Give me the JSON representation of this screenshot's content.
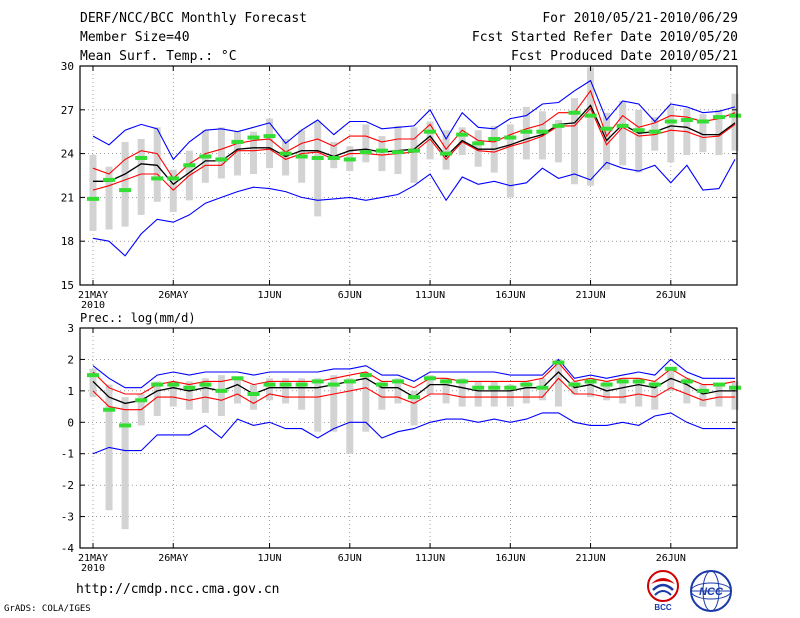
{
  "header": {
    "title": "DERF/NCC/BCC Monthly Forecast",
    "member_size": "Member Size=40",
    "variable": "Mean Surf. Temp.: °C",
    "for_range": "For 2010/05/21-2010/06/29",
    "fcst_started": "Fcst Started Refer Date 2010/05/20",
    "fcst_produced": "Fcst Produced Date 2010/05/21"
  },
  "footer": {
    "url": "http://cmdp.ncc.cma.gov.cn",
    "grads": "GrADS: COLA/IGES",
    "logo_bcc": "BCC",
    "logo_ncc": "NCC"
  },
  "colors": {
    "max_line": "#0000ff",
    "min_line": "#0000ff",
    "upper_line": "#ff0000",
    "lower_line": "#ff0000",
    "mean_line": "#000000",
    "ensemble_bar": "#d3d3d3",
    "marker": "#33dd33"
  },
  "chart_data": [
    {
      "type": "line",
      "title": "Mean Surf. Temp.: °C",
      "ylim": [
        15,
        30
      ],
      "yticks": [
        15,
        18,
        21,
        24,
        27,
        30
      ],
      "grid": true,
      "x_tick_labels": [
        {
          "day": 0,
          "label": "21MAY",
          "sub": "2010"
        },
        {
          "day": 5,
          "label": "26MAY",
          "sub": ""
        },
        {
          "day": 11,
          "label": "1JUN",
          "sub": ""
        },
        {
          "day": 16,
          "label": "6JUN",
          "sub": ""
        },
        {
          "day": 21,
          "label": "11JUN",
          "sub": ""
        },
        {
          "day": 26,
          "label": "16JUN",
          "sub": ""
        },
        {
          "day": 31,
          "label": "21JUN",
          "sub": ""
        },
        {
          "day": 36,
          "label": "26JUN",
          "sub": ""
        }
      ],
      "series": [
        {
          "name": "max",
          "values": [
            25.2,
            24.6,
            25.6,
            26.0,
            25.7,
            23.6,
            24.8,
            25.6,
            25.7,
            25.5,
            25.8,
            26.1,
            24.7,
            25.6,
            26.3,
            25.3,
            26.2,
            26.2,
            25.7,
            25.8,
            25.9,
            27.0,
            25.0,
            26.8,
            25.8,
            25.7,
            26.4,
            26.6,
            27.4,
            27.5,
            28.3,
            29.0,
            26.3,
            27.6,
            27.4,
            26.2,
            27.4,
            27.2,
            26.8,
            26.9,
            27.2
          ]
        },
        {
          "name": "upper",
          "values": [
            23.0,
            22.6,
            23.6,
            24.2,
            24.0,
            22.3,
            23.3,
            24.0,
            24.3,
            24.7,
            24.9,
            25.0,
            24.1,
            24.7,
            25.0,
            24.5,
            25.2,
            25.2,
            24.8,
            25.0,
            25.0,
            26.0,
            24.3,
            25.6,
            24.9,
            24.8,
            25.3,
            25.7,
            26.0,
            26.8,
            26.8,
            28.3,
            25.2,
            26.6,
            25.8,
            26.1,
            26.6,
            26.5,
            26.2,
            26.4,
            26.8
          ]
        },
        {
          "name": "mean",
          "values": [
            22.1,
            22.1,
            22.6,
            23.3,
            23.2,
            21.9,
            22.7,
            23.5,
            23.5,
            24.3,
            24.4,
            24.4,
            23.8,
            24.2,
            24.2,
            23.8,
            24.2,
            24.3,
            24.1,
            24.2,
            24.3,
            25.2,
            23.8,
            24.9,
            24.3,
            24.3,
            24.6,
            25.0,
            25.3,
            26.0,
            26.1,
            27.3,
            24.9,
            26.0,
            25.4,
            25.5,
            25.9,
            25.8,
            25.3,
            25.3,
            26.1
          ]
        },
        {
          "name": "lower",
          "values": [
            21.5,
            21.8,
            22.2,
            22.6,
            22.6,
            21.5,
            22.5,
            23.2,
            23.2,
            24.2,
            24.2,
            24.3,
            23.6,
            24.0,
            24.1,
            23.6,
            24.0,
            24.0,
            23.9,
            24.0,
            24.1,
            25.0,
            23.6,
            24.8,
            24.2,
            24.1,
            24.5,
            24.8,
            25.2,
            25.9,
            25.9,
            27.1,
            24.6,
            25.8,
            25.2,
            25.3,
            25.6,
            25.5,
            25.1,
            25.2,
            26.0
          ]
        },
        {
          "name": "min",
          "values": [
            18.2,
            18.0,
            17.0,
            18.5,
            19.5,
            19.3,
            19.8,
            20.6,
            21.0,
            21.4,
            21.7,
            21.6,
            21.4,
            21.0,
            20.8,
            20.9,
            21.0,
            20.8,
            21.0,
            21.2,
            21.8,
            22.6,
            20.8,
            22.4,
            21.9,
            22.1,
            21.8,
            22.0,
            23.0,
            22.3,
            22.6,
            22.2,
            23.4,
            23.0,
            22.8,
            23.2,
            22.0,
            23.2,
            21.5,
            21.6,
            23.6
          ]
        },
        {
          "name": "bar_low",
          "values": [
            18.7,
            18.8,
            19.0,
            19.8,
            20.7,
            20.0,
            20.8,
            22.0,
            22.3,
            22.5,
            22.6,
            23.0,
            22.5,
            22.0,
            19.7,
            23.0,
            22.8,
            23.4,
            22.8,
            22.6,
            22.0,
            23.6,
            22.9,
            23.9,
            23.1,
            22.7,
            21.0,
            23.6,
            23.6,
            23.4,
            21.9,
            21.8,
            22.9,
            23.2,
            22.7,
            24.2,
            23.4,
            23.9,
            24.1,
            23.9,
            24.2
          ]
        },
        {
          "name": "bar_high",
          "values": [
            23.9,
            23.1,
            24.8,
            25.0,
            25.8,
            22.9,
            24.2,
            25.6,
            25.8,
            25.5,
            25.5,
            26.4,
            25.0,
            25.6,
            26.2,
            24.8,
            24.5,
            26.0,
            25.2,
            25.9,
            25.8,
            26.2,
            25.6,
            25.8,
            25.6,
            25.9,
            26.0,
            27.2,
            26.9,
            26.3,
            27.8,
            29.9,
            26.8,
            27.6,
            27.0,
            26.5,
            27.3,
            27.1,
            26.7,
            27.0,
            28.1
          ]
        },
        {
          "name": "marker",
          "values": [
            20.9,
            22.2,
            21.5,
            23.7,
            22.3,
            22.3,
            23.2,
            23.8,
            23.6,
            24.8,
            25.1,
            25.2,
            24.0,
            23.8,
            23.7,
            23.7,
            23.6,
            24.1,
            24.2,
            24.1,
            24.2,
            25.5,
            24.0,
            25.3,
            24.7,
            25.0,
            25.1,
            25.5,
            25.5,
            25.9,
            26.8,
            26.6,
            25.7,
            25.9,
            25.6,
            25.5,
            26.2,
            26.3,
            26.2,
            26.5,
            26.6
          ]
        }
      ]
    },
    {
      "type": "line",
      "title": "Prec.: log(mm/d)",
      "ylim": [
        -4,
        3
      ],
      "yticks": [
        -4,
        -3,
        -2,
        -1,
        0,
        1,
        2,
        3
      ],
      "grid": true,
      "x_tick_labels": [
        {
          "day": 0,
          "label": "21MAY",
          "sub": "2010"
        },
        {
          "day": 5,
          "label": "26MAY",
          "sub": ""
        },
        {
          "day": 11,
          "label": "1JUN",
          "sub": ""
        },
        {
          "day": 16,
          "label": "6JUN",
          "sub": ""
        },
        {
          "day": 21,
          "label": "11JUN",
          "sub": ""
        },
        {
          "day": 26,
          "label": "16JUN",
          "sub": ""
        },
        {
          "day": 31,
          "label": "21JUN",
          "sub": ""
        },
        {
          "day": 36,
          "label": "26JUN",
          "sub": ""
        }
      ],
      "series": [
        {
          "name": "max",
          "values": [
            1.8,
            1.4,
            1.1,
            1.1,
            1.5,
            1.6,
            1.5,
            1.6,
            1.6,
            1.6,
            1.5,
            1.6,
            1.6,
            1.6,
            1.6,
            1.7,
            1.7,
            1.8,
            1.5,
            1.5,
            1.3,
            1.6,
            1.6,
            1.6,
            1.6,
            1.6,
            1.5,
            1.5,
            1.5,
            2.0,
            1.4,
            1.5,
            1.4,
            1.5,
            1.6,
            1.5,
            2.0,
            1.6,
            1.4,
            1.4,
            1.4
          ]
        },
        {
          "name": "upper",
          "values": [
            1.6,
            1.1,
            0.9,
            0.9,
            1.2,
            1.3,
            1.2,
            1.3,
            1.3,
            1.4,
            1.2,
            1.3,
            1.3,
            1.3,
            1.3,
            1.4,
            1.5,
            1.6,
            1.3,
            1.3,
            1.1,
            1.4,
            1.4,
            1.3,
            1.3,
            1.3,
            1.3,
            1.3,
            1.4,
            1.9,
            1.3,
            1.4,
            1.3,
            1.4,
            1.4,
            1.3,
            1.7,
            1.4,
            1.2,
            1.2,
            1.3
          ]
        },
        {
          "name": "mean",
          "values": [
            1.3,
            0.8,
            0.6,
            0.7,
            1.0,
            1.1,
            1.0,
            1.1,
            1.0,
            1.2,
            0.9,
            1.1,
            1.1,
            1.1,
            1.1,
            1.2,
            1.3,
            1.4,
            1.1,
            1.1,
            0.8,
            1.2,
            1.2,
            1.1,
            1.0,
            1.0,
            1.0,
            1.1,
            1.1,
            1.6,
            1.1,
            1.2,
            1.0,
            1.1,
            1.2,
            1.1,
            1.4,
            1.2,
            0.9,
            1.0,
            1.0
          ]
        },
        {
          "name": "lower",
          "values": [
            1.0,
            0.5,
            0.4,
            0.4,
            0.8,
            0.8,
            0.7,
            0.8,
            0.7,
            0.9,
            0.6,
            0.9,
            0.8,
            0.8,
            0.8,
            0.9,
            1.0,
            1.1,
            0.8,
            0.8,
            0.6,
            0.9,
            0.9,
            0.8,
            0.8,
            0.8,
            0.8,
            0.8,
            0.8,
            1.4,
            0.9,
            0.9,
            0.8,
            0.8,
            0.9,
            0.8,
            1.1,
            0.9,
            0.7,
            0.8,
            0.8
          ]
        },
        {
          "name": "min",
          "values": [
            -1.0,
            -0.8,
            -0.9,
            -0.9,
            -0.4,
            -0.4,
            -0.4,
            -0.1,
            -0.5,
            0.1,
            -0.1,
            0.0,
            -0.2,
            -0.2,
            -0.5,
            -0.2,
            0.0,
            0.0,
            -0.5,
            -0.3,
            -0.2,
            0.0,
            0.1,
            0.1,
            0.0,
            0.1,
            0.0,
            0.1,
            0.3,
            0.3,
            0.0,
            -0.1,
            -0.1,
            0.0,
            -0.1,
            0.2,
            0.3,
            0.0,
            -0.2,
            -0.2,
            -0.2
          ]
        },
        {
          "name": "bar_low",
          "values": [
            0.8,
            -2.8,
            -3.4,
            -0.1,
            0.2,
            0.5,
            0.4,
            0.3,
            0.2,
            0.6,
            0.4,
            0.7,
            0.6,
            0.4,
            -0.3,
            -0.3,
            -1.0,
            -0.3,
            0.4,
            0.6,
            -0.1,
            0.9,
            0.6,
            0.5,
            0.5,
            0.5,
            0.5,
            0.6,
            0.7,
            0.5,
            0.9,
            0.8,
            0.7,
            0.6,
            0.5,
            0.4,
            1.0,
            0.6,
            0.5,
            0.5,
            0.4
          ]
        },
        {
          "name": "bar_high",
          "values": [
            1.7,
            1.2,
            0.8,
            0.9,
            1.3,
            1.3,
            1.3,
            1.4,
            1.5,
            1.4,
            1.2,
            1.4,
            1.4,
            1.4,
            1.4,
            1.5,
            1.4,
            1.6,
            1.3,
            1.4,
            1.0,
            1.5,
            1.4,
            1.4,
            1.3,
            1.3,
            1.2,
            1.3,
            1.4,
            2.0,
            1.3,
            1.3,
            1.3,
            1.4,
            1.4,
            1.3,
            1.7,
            1.4,
            1.2,
            1.2,
            1.3
          ]
        },
        {
          "name": "marker",
          "values": [
            1.5,
            0.4,
            -0.1,
            0.7,
            1.2,
            1.2,
            1.1,
            1.2,
            1.0,
            1.4,
            0.9,
            1.2,
            1.2,
            1.2,
            1.3,
            1.2,
            1.3,
            1.5,
            1.2,
            1.3,
            0.8,
            1.4,
            1.3,
            1.3,
            1.1,
            1.1,
            1.1,
            1.2,
            1.1,
            1.9,
            1.2,
            1.3,
            1.2,
            1.3,
            1.3,
            1.2,
            1.7,
            1.3,
            1.0,
            1.2,
            1.1
          ]
        }
      ]
    }
  ]
}
